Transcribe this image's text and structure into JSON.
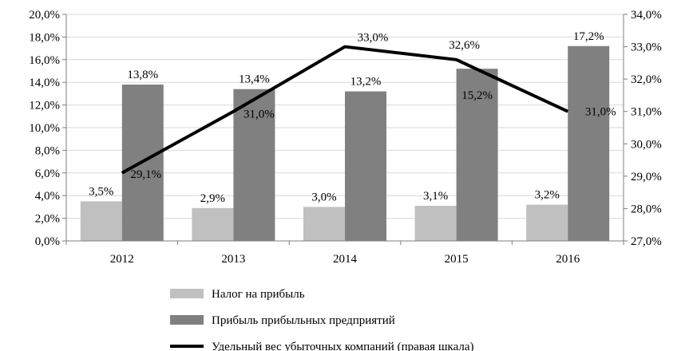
{
  "chart_data": {
    "type": "bar",
    "categories": [
      "2012",
      "2013",
      "2014",
      "2015",
      "2016"
    ],
    "series": [
      {
        "name": "Налог на прибыль",
        "kind": "bar",
        "axis": "left",
        "color": "#c0c0c0",
        "values": [
          3.5,
          2.9,
          3.0,
          3.1,
          3.2
        ],
        "labels": [
          "3,5%",
          "2,9%",
          "3,0%",
          "3,1%",
          "3,2%"
        ]
      },
      {
        "name": "Прибыль прибыльных предприятий",
        "kind": "bar",
        "axis": "left",
        "color": "#808080",
        "values": [
          13.8,
          13.4,
          13.2,
          15.2,
          17.2
        ],
        "labels": [
          "13,8%",
          "13,4%",
          "13,2%",
          "15,2%",
          "17,2%"
        ]
      },
      {
        "name": "Удельный вес убыточных компаний (правая шкала)",
        "kind": "line",
        "axis": "right",
        "color": "#000000",
        "values": [
          29.1,
          31.0,
          33.0,
          32.6,
          31.0
        ],
        "labels": [
          "29,1%",
          "31,0%",
          "33,0%",
          "32,6%",
          "31,0%"
        ]
      }
    ],
    "y_left": {
      "range": [
        0,
        20
      ],
      "ticks": [
        0,
        2,
        4,
        6,
        8,
        10,
        12,
        14,
        16,
        18,
        20
      ],
      "tick_labels": [
        "0,0%",
        "2,0%",
        "4,0%",
        "6,0%",
        "8,0%",
        "10,0%",
        "12,0%",
        "14,0%",
        "16,0%",
        "18,0%",
        "20,0%"
      ]
    },
    "y_right": {
      "range": [
        27,
        34
      ],
      "ticks": [
        27,
        28,
        29,
        30,
        31,
        32,
        33,
        34
      ],
      "tick_labels": [
        "27,0%",
        "28,0%",
        "29,0%",
        "30,0%",
        "31,0%",
        "32,0%",
        "33,0%",
        "34,0%"
      ]
    },
    "grid": true,
    "legend_position": "bottom-center",
    "title": "",
    "xlabel": "",
    "ylabel": ""
  }
}
